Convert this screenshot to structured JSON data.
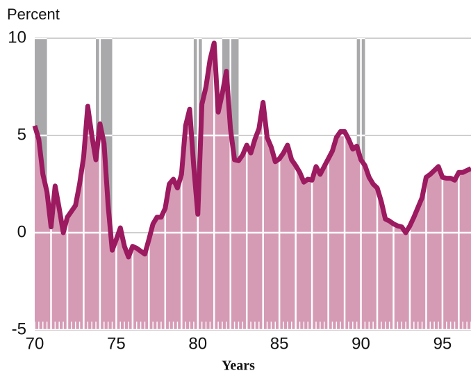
{
  "chart_data": {
    "type": "area",
    "y_label": "Percent",
    "x_label": "Years",
    "x": [
      70,
      70.25,
      70.5,
      70.75,
      71,
      71.25,
      71.5,
      71.75,
      72,
      72.25,
      72.5,
      72.75,
      73,
      73.25,
      73.5,
      73.75,
      74,
      74.25,
      74.5,
      74.75,
      75,
      75.25,
      75.5,
      75.75,
      76,
      76.25,
      76.5,
      76.75,
      77,
      77.25,
      77.5,
      77.75,
      78,
      78.25,
      78.5,
      78.75,
      79,
      79.25,
      79.5,
      79.75,
      80,
      80.25,
      80.5,
      80.75,
      81,
      81.25,
      81.5,
      81.75,
      82,
      82.25,
      82.5,
      82.75,
      83,
      83.25,
      83.5,
      83.75,
      84,
      84.25,
      84.5,
      84.75,
      85,
      85.25,
      85.5,
      85.75,
      86,
      86.25,
      86.5,
      86.75,
      87,
      87.25,
      87.5,
      87.75,
      88,
      88.25,
      88.5,
      88.75,
      89,
      89.25,
      89.5,
      89.75,
      90,
      90.25,
      90.5,
      90.75,
      91,
      91.25,
      91.5,
      91.75,
      92,
      92.25,
      92.5,
      92.75,
      93,
      93.25,
      93.5,
      93.75,
      94,
      94.25,
      94.5,
      94.75,
      95,
      95.25,
      95.5,
      95.75,
      96,
      96.25,
      96.5,
      96.75
    ],
    "values": [
      5.5,
      4.8,
      3.0,
      2.1,
      0.3,
      2.4,
      1.25,
      0,
      0.8,
      1.1,
      1.4,
      2.5,
      3.9,
      6.5,
      5.0,
      3.75,
      5.6,
      4.6,
      1.4,
      -0.9,
      -0.35,
      0.25,
      -0.7,
      -1.25,
      -0.7,
      -0.8,
      -0.95,
      -1.1,
      -0.35,
      0.45,
      0.8,
      0.8,
      1.25,
      2.5,
      2.75,
      2.3,
      3.0,
      5.5,
      6.35,
      3.4,
      0.95,
      6.6,
      7.5,
      8.9,
      9.75,
      6.2,
      7.15,
      8.3,
      5.35,
      3.75,
      3.7,
      4.0,
      4.5,
      4.1,
      4.8,
      5.35,
      6.7,
      4.9,
      4.4,
      3.65,
      3.8,
      4.1,
      4.5,
      3.75,
      3.45,
      3.1,
      2.6,
      2.75,
      2.7,
      3.4,
      3.0,
      3.4,
      3.8,
      4.2,
      4.9,
      5.2,
      5.2,
      4.8,
      4.3,
      4.45,
      3.75,
      3.45,
      2.85,
      2.5,
      2.3,
      1.6,
      0.7,
      0.6,
      0.45,
      0.35,
      0.3,
      0,
      0.35,
      0.8,
      1.3,
      1.8,
      2.85,
      3.0,
      3.2,
      3.4,
      2.85,
      2.8,
      2.8,
      2.7,
      3.1,
      3.1,
      3.2,
      3.3
    ],
    "color": "#9c1a60",
    "fill": "#d59bb5",
    "shaded_periods": [
      [
        70,
        70.75
      ],
      [
        73.75,
        74.75
      ],
      [
        79.75,
        80.25
      ],
      [
        81.5,
        82.5
      ],
      [
        89.75,
        90.25
      ]
    ],
    "shade_color": "#a9a9ac",
    "xlim": [
      70,
      96.75
    ],
    "xticks": [
      70,
      75,
      80,
      85,
      90,
      95
    ],
    "ylim": [
      -5,
      10
    ],
    "yticks": [
      -5,
      0,
      5,
      10
    ],
    "grid": true,
    "xgrid_step": 1
  }
}
